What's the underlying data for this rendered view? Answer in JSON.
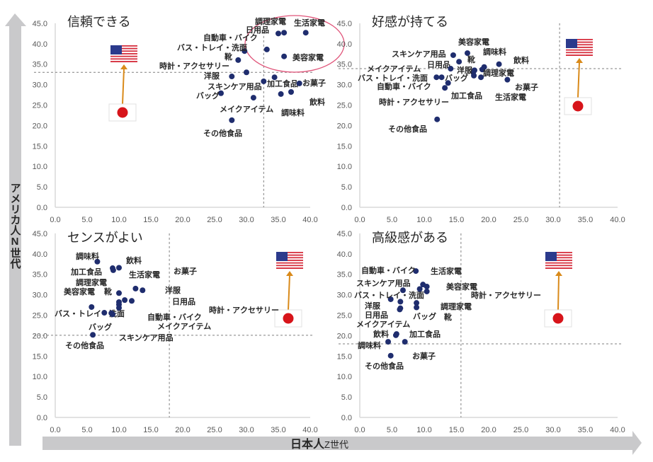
{
  "axes": {
    "ylabel": "アメリカ人N世代",
    "xlabel_main": "日本人",
    "xlabel_suffix": "Z世代",
    "arrow_color": "#c9c9cb"
  },
  "colors": {
    "point": "#1f2d6e",
    "reference_line": "#7f7f7f",
    "highlight_ellipse": "#e0557a",
    "flag_arrow": "#d98a1a",
    "japan_red": "#d7141a",
    "us_red": "#d52b3a",
    "us_blue": "#2b3a8c"
  },
  "icons": {
    "us": "us-flag-icon",
    "japan": "japan-flag-icon"
  },
  "chart_data": [
    {
      "type": "scatter",
      "title": "信頼できる",
      "xlim": [
        0,
        40
      ],
      "ylim": [
        0,
        45
      ],
      "x_ticks": [
        "0.0",
        "5.0",
        "10.0",
        "15.0",
        "20.0",
        "25.0",
        "30.0",
        "35.0",
        "40.0"
      ],
      "y_ticks": [
        "0.0",
        "5.0",
        "10.0",
        "15.0",
        "20.0",
        "25.0",
        "30.0",
        "35.0",
        "40.0",
        "45.0"
      ],
      "reference": {
        "x": 32.7,
        "y": 33.0
      },
      "highlight": "ellipse around 調理家電, 生活家電, 日用品, 自動車・バイク, 美容家電",
      "points": [
        {
          "label": "生活家電",
          "x": 39.3,
          "y": 42.7
        },
        {
          "label": "調理家電",
          "x": 35.9,
          "y": 42.7
        },
        {
          "label": "日用品",
          "x": 35.0,
          "y": 42.5
        },
        {
          "label": "自動車・バイク",
          "x": 33.2,
          "y": 38.6
        },
        {
          "label": "バス・トレイ・洗面",
          "x": 29.7,
          "y": 38.2
        },
        {
          "label": "靴",
          "x": 28.7,
          "y": 36.0
        },
        {
          "label": "美容家電",
          "x": 35.9,
          "y": 36.9
        },
        {
          "label": "時計・アクセサリー",
          "x": 30.0,
          "y": 33.0
        },
        {
          "label": "洋服",
          "x": 27.7,
          "y": 32.0
        },
        {
          "label": "スキンケア用品",
          "x": 32.7,
          "y": 30.8
        },
        {
          "label": "加工食品",
          "x": 34.4,
          "y": 31.8
        },
        {
          "label": "お菓子",
          "x": 38.3,
          "y": 30.3
        },
        {
          "label": "飲料",
          "x": 37.0,
          "y": 28.2
        },
        {
          "label": "調味料",
          "x": 35.4,
          "y": 27.7
        },
        {
          "label": "バッグ",
          "x": 26.0,
          "y": 27.9
        },
        {
          "label": "メイクアイテム",
          "x": 31.1,
          "y": 26.8
        },
        {
          "label": "その他食品",
          "x": 27.7,
          "y": 21.3
        }
      ]
    },
    {
      "type": "scatter",
      "title": "好感が持てる",
      "xlim": [
        0,
        40
      ],
      "ylim": [
        0,
        45
      ],
      "x_ticks": [
        "0.0",
        "5.0",
        "10.0",
        "15.0",
        "20.0",
        "25.0",
        "30.0",
        "35.0",
        "40.0"
      ],
      "y_ticks": [
        "0.0",
        "5.0",
        "10.0",
        "15.0",
        "20.0",
        "25.0",
        "30.0",
        "35.0",
        "40.0",
        "45.0"
      ],
      "reference": {
        "x": 31.0,
        "y": 33.9
      },
      "points": [
        {
          "label": "美容家電",
          "x": 16.7,
          "y": 37.7
        },
        {
          "label": "調味料",
          "x": 19.3,
          "y": 34.3
        },
        {
          "label": "スキンケア用品",
          "x": 14.5,
          "y": 37.2
        },
        {
          "label": "日用品",
          "x": 15.4,
          "y": 35.6
        },
        {
          "label": "靴",
          "x": 17.8,
          "y": 33.5
        },
        {
          "label": "飲料",
          "x": 21.6,
          "y": 35.0
        },
        {
          "label": "メイクアイテム",
          "x": 14.1,
          "y": 33.9
        },
        {
          "label": "洋服",
          "x": 17.6,
          "y": 33.0
        },
        {
          "label": "調理家電",
          "x": 19.0,
          "y": 33.7
        },
        {
          "label": "バス・トレイ・洗面",
          "x": 11.9,
          "y": 31.8
        },
        {
          "label": "バッグ",
          "x": 12.7,
          "y": 31.8
        },
        {
          "label": "自動車・バイク",
          "x": 13.7,
          "y": 30.4
        },
        {
          "label": "お菓子",
          "x": 22.9,
          "y": 31.2
        },
        {
          "label": "加工食品",
          "x": 17.7,
          "y": 32.2
        },
        {
          "label": "生活家電",
          "x": 18.8,
          "y": 31.8
        },
        {
          "label": "時計・アクセサリー",
          "x": 13.2,
          "y": 29.2
        },
        {
          "label": "その他食品",
          "x": 12.0,
          "y": 21.5
        }
      ]
    },
    {
      "type": "scatter",
      "title": "センスがよい",
      "xlim": [
        0,
        40
      ],
      "ylim": [
        0,
        45
      ],
      "x_ticks": [
        "0.0",
        "5.0",
        "10.0",
        "15.0",
        "20.0",
        "25.0",
        "30.0",
        "35.0",
        "40.0"
      ],
      "y_ticks": [
        "0.0",
        "5.0",
        "10.0",
        "15.0",
        "20.0",
        "25.0",
        "30.0",
        "35.0",
        "40.0",
        "45.0"
      ],
      "reference": {
        "x": 17.9,
        "y": 20.1
      },
      "points": [
        {
          "label": "調味料",
          "x": 6.6,
          "y": 38.1
        },
        {
          "label": "飲料",
          "x": 10.0,
          "y": 36.6
        },
        {
          "label": "加工食品",
          "x": 9.0,
          "y": 36.5
        },
        {
          "label": "お菓子",
          "x": 13.7,
          "y": 31.1
        },
        {
          "label": "生活家電",
          "x": 12.6,
          "y": 31.5
        },
        {
          "label": "調理家電",
          "x": 9.1,
          "y": 36.0
        },
        {
          "label": "洋服",
          "x": 12.0,
          "y": 28.5
        },
        {
          "label": "美容家電",
          "x": 10.0,
          "y": 30.4
        },
        {
          "label": "靴",
          "x": 10.9,
          "y": 28.7
        },
        {
          "label": "日用品",
          "x": 10.0,
          "y": 28.2
        },
        {
          "label": "時計・アクセサリー",
          "x": 10.0,
          "y": 27.6
        },
        {
          "label": "バス・トレイ・洗面",
          "x": 5.7,
          "y": 27.0
        },
        {
          "label": "バッグ",
          "x": 7.7,
          "y": 25.6
        },
        {
          "label": "自動車・バイク",
          "x": 10.0,
          "y": 26.8
        },
        {
          "label": "メイクアイテム",
          "x": 9.0,
          "y": 25.2
        },
        {
          "label": "スキンケア用品",
          "x": 8.8,
          "y": 25.5
        },
        {
          "label": "その他食品",
          "x": 5.9,
          "y": 20.2
        }
      ]
    },
    {
      "type": "scatter",
      "title": "高級感がある",
      "xlim": [
        0,
        40
      ],
      "ylim": [
        0,
        45
      ],
      "x_ticks": [
        "0.0",
        "5.0",
        "10.0",
        "15.0",
        "20.0",
        "25.0",
        "30.0",
        "35.0",
        "40.0"
      ],
      "y_ticks": [
        "0.0",
        "5.0",
        "10.0",
        "15.0",
        "20.0",
        "25.0",
        "30.0",
        "35.0",
        "40.0",
        "45.0"
      ],
      "reference": {
        "x": 15.7,
        "y": 18.0
      },
      "points": [
        {
          "label": "自動車・バイク",
          "x": 8.7,
          "y": 35.8
        },
        {
          "label": "生活家電",
          "x": 9.8,
          "y": 32.5
        },
        {
          "label": "スキンケア用品",
          "x": 6.7,
          "y": 31.1
        },
        {
          "label": "美容家電",
          "x": 10.4,
          "y": 32.0
        },
        {
          "label": "時計・アクセサリー",
          "x": 10.4,
          "y": 30.8
        },
        {
          "label": "バス・トレイ・洗面",
          "x": 4.8,
          "y": 28.9
        },
        {
          "label": "洋服",
          "x": 6.3,
          "y": 28.3
        },
        {
          "label": "調理家電",
          "x": 9.3,
          "y": 31.4
        },
        {
          "label": "日用品",
          "x": 6.2,
          "y": 26.4
        },
        {
          "label": "バッグ",
          "x": 8.8,
          "y": 28.0
        },
        {
          "label": "靴",
          "x": 8.8,
          "y": 26.9
        },
        {
          "label": "メイクアイテム",
          "x": 6.3,
          "y": 26.7
        },
        {
          "label": "飲料",
          "x": 5.6,
          "y": 20.1
        },
        {
          "label": "加工食品",
          "x": 5.7,
          "y": 20.4
        },
        {
          "label": "調味料",
          "x": 4.4,
          "y": 18.5
        },
        {
          "label": "お菓子",
          "x": 7.0,
          "y": 18.5
        },
        {
          "label": "その他食品",
          "x": 4.8,
          "y": 15.1
        }
      ]
    }
  ]
}
